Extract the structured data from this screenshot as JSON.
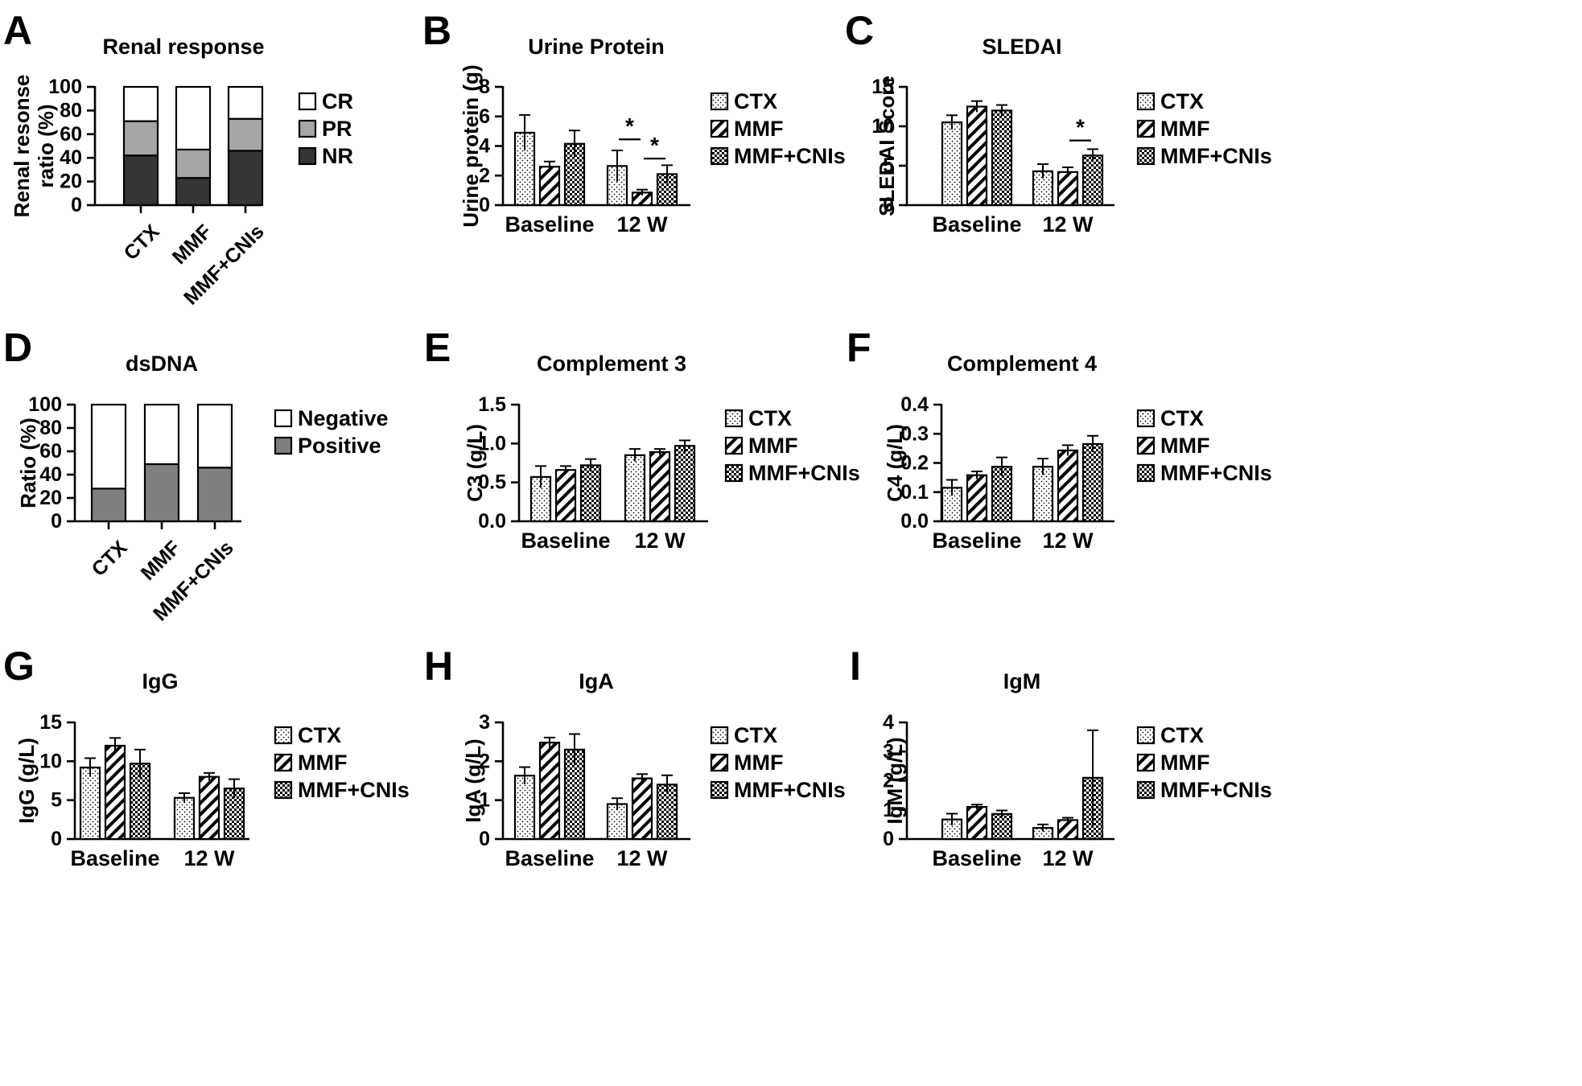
{
  "colors": {
    "stroke": "#000000",
    "pr_fill": "#a6a6a7",
    "nr_fill": "#353535",
    "positive_fill": "#7f7f7f",
    "white": "#ffffff"
  },
  "legend_patterns": [
    "dots-pattern",
    "diagonal-hatch-pattern",
    "checker-pattern"
  ],
  "chart_data": [
    {
      "id": "A",
      "letter": "A",
      "type": "bar",
      "stacked": true,
      "title": "Renal response",
      "ylabel_lines": [
        "Renal resonse",
        "ratio (%)"
      ],
      "xlabel": "",
      "ylim": [
        0,
        100
      ],
      "yticks": [
        "0",
        "20",
        "40",
        "60",
        "80",
        "100"
      ],
      "categories": [
        "CTX",
        "MMF",
        "MMF+CNIs"
      ],
      "series": [
        {
          "name": "NR",
          "values": [
            42,
            23,
            46
          ],
          "fill": "#353535"
        },
        {
          "name": "PR",
          "values": [
            29,
            24,
            27
          ],
          "fill": "#a6a6a7"
        },
        {
          "name": "CR",
          "values": [
            29,
            53,
            27
          ],
          "fill": "#ffffff"
        }
      ],
      "legend": [
        "CR",
        "PR",
        "NR"
      ]
    },
    {
      "id": "B",
      "letter": "B",
      "type": "bar",
      "title": "Urine Protein",
      "ylabel_lines": [
        "Urine protein (g)"
      ],
      "xlabel": "",
      "ylim": [
        0,
        8
      ],
      "yticks": [
        "0",
        "2",
        "4",
        "6",
        "8"
      ],
      "categories": [
        "Baseline",
        "12 W"
      ],
      "series": [
        {
          "name": "CTX",
          "values": [
            4.9,
            2.65
          ],
          "errors": [
            1.2,
            1.05
          ]
        },
        {
          "name": "MMF",
          "values": [
            2.6,
            0.85
          ],
          "errors": [
            0.35,
            0.2
          ]
        },
        {
          "name": "MMF+CNIs",
          "values": [
            4.15,
            2.1
          ],
          "errors": [
            0.9,
            0.6
          ]
        }
      ],
      "significance": [
        {
          "group": 1,
          "from": 0,
          "to": 1,
          "level": 4.45,
          "label": "*"
        },
        {
          "group": 1,
          "from": 1,
          "to": 2,
          "level": 3.15,
          "label": "*"
        }
      ],
      "legend": [
        "CTX",
        "MMF",
        "MMF+CNIs"
      ]
    },
    {
      "id": "C",
      "letter": "C",
      "type": "bar",
      "title": "SLEDAI",
      "ylabel_lines": [
        "SLEDAI Score"
      ],
      "xlabel": "",
      "ylim": [
        0,
        15
      ],
      "yticks": [
        "0",
        "5",
        "10",
        "15"
      ],
      "categories": [
        "Baseline",
        "12 W"
      ],
      "series": [
        {
          "name": "CTX",
          "values": [
            10.5,
            4.3
          ],
          "errors": [
            0.9,
            0.9
          ]
        },
        {
          "name": "MMF",
          "values": [
            12.5,
            4.2
          ],
          "errors": [
            0.7,
            0.6
          ]
        },
        {
          "name": "MMF+CNIs",
          "values": [
            12.0,
            6.3
          ],
          "errors": [
            0.7,
            0.8
          ]
        }
      ],
      "significance": [
        {
          "group": 1,
          "from": 1,
          "to": 2,
          "level": 8.2,
          "label": "*"
        }
      ],
      "legend": [
        "CTX",
        "MMF",
        "MMF+CNIs"
      ]
    },
    {
      "id": "D",
      "letter": "D",
      "type": "bar",
      "stacked": true,
      "title": "dsDNA",
      "ylabel_lines": [
        "Ratio (%)"
      ],
      "xlabel": "",
      "ylim": [
        0,
        100
      ],
      "yticks": [
        "0",
        "20",
        "40",
        "60",
        "80",
        "100"
      ],
      "categories": [
        "CTX",
        "MMF",
        "MMF+CNIs"
      ],
      "series": [
        {
          "name": "Positive",
          "values": [
            28,
            49,
            46
          ],
          "fill": "#7f7f7f"
        },
        {
          "name": "Negative",
          "values": [
            72,
            51,
            54
          ],
          "fill": "#ffffff"
        }
      ],
      "legend": [
        "Negative",
        "Positive"
      ]
    },
    {
      "id": "E",
      "letter": "E",
      "type": "bar",
      "title": "Complement 3",
      "ylabel_lines": [
        "C3 (g/L)"
      ],
      "xlabel": "",
      "ylim": [
        0,
        1.5
      ],
      "yticks": [
        "0.0",
        "0.5",
        "1.0",
        "1.5"
      ],
      "categories": [
        "Baseline",
        "12 W"
      ],
      "series": [
        {
          "name": "CTX",
          "values": [
            0.57,
            0.85
          ],
          "errors": [
            0.14,
            0.08
          ]
        },
        {
          "name": "MMF",
          "values": [
            0.66,
            0.89
          ],
          "errors": [
            0.05,
            0.04
          ]
        },
        {
          "name": "MMF+CNIs",
          "values": [
            0.72,
            0.97
          ],
          "errors": [
            0.08,
            0.07
          ]
        }
      ],
      "legend": [
        "CTX",
        "MMF",
        "MMF+CNIs"
      ]
    },
    {
      "id": "F",
      "letter": "F",
      "type": "bar",
      "title": "Complement 4",
      "ylabel_lines": [
        "C4 (g/L)"
      ],
      "xlabel": "",
      "ylim": [
        0,
        0.4
      ],
      "yticks": [
        "0.0",
        "0.1",
        "0.2",
        "0.3",
        "0.4"
      ],
      "categories": [
        "Baseline",
        "12 W"
      ],
      "series": [
        {
          "name": "CTX",
          "values": [
            0.115,
            0.187
          ],
          "errors": [
            0.027,
            0.028
          ]
        },
        {
          "name": "MMF",
          "values": [
            0.158,
            0.243
          ],
          "errors": [
            0.013,
            0.018
          ]
        },
        {
          "name": "MMF+CNIs",
          "values": [
            0.187,
            0.265
          ],
          "errors": [
            0.032,
            0.028
          ]
        }
      ],
      "legend": [
        "CTX",
        "MMF",
        "MMF+CNIs"
      ]
    },
    {
      "id": "G",
      "letter": "G",
      "type": "bar",
      "title": "IgG",
      "ylabel_lines": [
        "IgG (g/L)"
      ],
      "xlabel": "",
      "ylim": [
        0,
        15
      ],
      "yticks": [
        "0",
        "5",
        "10",
        "15"
      ],
      "categories": [
        "Baseline",
        "12 W"
      ],
      "series": [
        {
          "name": "CTX",
          "values": [
            9.2,
            5.3
          ],
          "errors": [
            1.2,
            0.6
          ]
        },
        {
          "name": "MMF",
          "values": [
            12.0,
            8.0
          ],
          "errors": [
            1.0,
            0.5
          ]
        },
        {
          "name": "MMF+CNIs",
          "values": [
            9.7,
            6.5
          ],
          "errors": [
            1.8,
            1.2
          ]
        }
      ],
      "legend": [
        "CTX",
        "MMF",
        "MMF+CNIs"
      ]
    },
    {
      "id": "H",
      "letter": "H",
      "type": "bar",
      "title": "IgA",
      "ylabel_lines": [
        "IgA (g/L)"
      ],
      "xlabel": "",
      "ylim": [
        0,
        3
      ],
      "yticks": [
        "0",
        "1",
        "2",
        "3"
      ],
      "categories": [
        "Baseline",
        "12 W"
      ],
      "series": [
        {
          "name": "CTX",
          "values": [
            1.63,
            0.9
          ],
          "errors": [
            0.22,
            0.15
          ]
        },
        {
          "name": "MMF",
          "values": [
            2.48,
            1.56
          ],
          "errors": [
            0.13,
            0.11
          ]
        },
        {
          "name": "MMF+CNIs",
          "values": [
            2.3,
            1.4
          ],
          "errors": [
            0.4,
            0.24
          ]
        }
      ],
      "legend": [
        "CTX",
        "MMF",
        "MMF+CNIs"
      ]
    },
    {
      "id": "I",
      "letter": "I",
      "type": "bar",
      "title": "IgM",
      "ylabel_lines": [
        "IgM (g/L)"
      ],
      "xlabel": "",
      "ylim": [
        0,
        4
      ],
      "yticks": [
        "0",
        "1",
        "2",
        "3",
        "4"
      ],
      "categories": [
        "Baseline",
        "12 W"
      ],
      "series": [
        {
          "name": "CTX",
          "values": [
            0.67,
            0.38
          ],
          "errors": [
            0.2,
            0.12
          ]
        },
        {
          "name": "MMF",
          "values": [
            1.1,
            0.65
          ],
          "errors": [
            0.08,
            0.08
          ]
        },
        {
          "name": "MMF+CNIs",
          "values": [
            0.86,
            2.1
          ],
          "errors": [
            0.12,
            1.63
          ]
        }
      ],
      "legend": [
        "CTX",
        "MMF",
        "MMF+CNIs"
      ]
    }
  ]
}
